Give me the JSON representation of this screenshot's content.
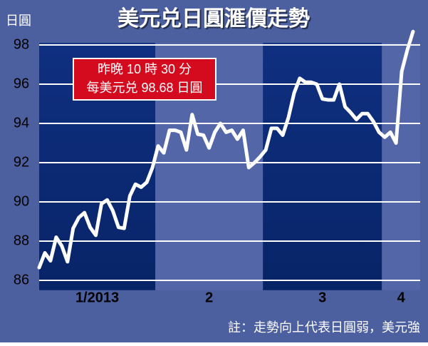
{
  "chart_data": {
    "type": "line",
    "title": "美元兑日圓滙價走勢",
    "y_label": "日圓",
    "annotation": [
      "昨晚 10 時 30 分",
      "每美元兑 98.68 日圓"
    ],
    "note": "註：走勢向上代表日圓弱，美元強",
    "categories": [
      "1/2013",
      "2",
      "3",
      "4"
    ],
    "values_by_month": [
      [
        86.65,
        87.4,
        87.0,
        88.2,
        87.75,
        86.95,
        88.65,
        89.2,
        89.45,
        88.7,
        88.3,
        89.9,
        90.1,
        89.55,
        88.7,
        88.65,
        90.3,
        90.9,
        90.75,
        91.0,
        91.75
      ],
      [
        92.85,
        92.5,
        93.65,
        93.65,
        93.55,
        92.65,
        94.45,
        93.45,
        93.4,
        92.75,
        93.55,
        94.0,
        93.55,
        93.65,
        93.2,
        93.65,
        91.75,
        92.0,
        92.3
      ],
      [
        92.65,
        93.75,
        93.75,
        93.4,
        94.3,
        95.55,
        96.3,
        96.1,
        96.1,
        96.0,
        95.25,
        95.2,
        95.2,
        96.0,
        94.85,
        94.55,
        94.2,
        94.5,
        94.5,
        94.1,
        93.55
      ],
      [
        93.3,
        93.55,
        93.0,
        96.65,
        97.75,
        98.68
      ]
    ],
    "color": "#ffffff",
    "ylim": [
      85.5,
      98.9
    ],
    "yticks": [
      86,
      88,
      90,
      92,
      94,
      96,
      98
    ],
    "grid": true
  }
}
